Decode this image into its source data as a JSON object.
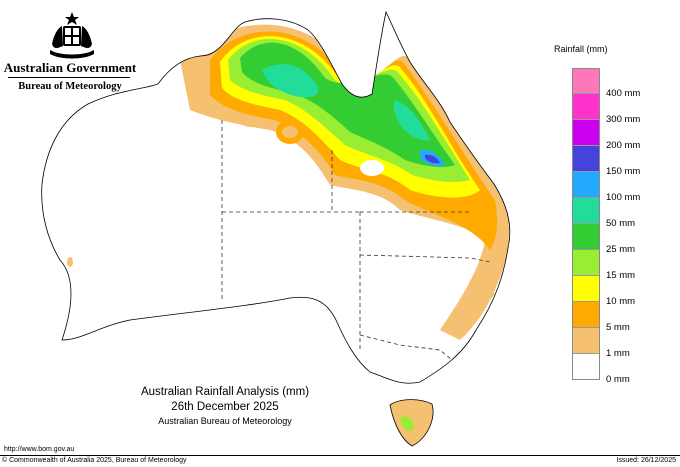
{
  "header": {
    "government": "Australian Government",
    "bureau": "Bureau of Meteorology"
  },
  "legend": {
    "title": "Rainfall (mm)",
    "classes": [
      {
        "label": "",
        "color": "#ff77bb"
      },
      {
        "label": "400 mm",
        "color": "#ff33cc"
      },
      {
        "label": "300 mm",
        "color": "#cc00ee"
      },
      {
        "label": "200 mm",
        "color": "#4444dd"
      },
      {
        "label": "150 mm",
        "color": "#22aaff"
      },
      {
        "label": "100 mm",
        "color": "#22dd99"
      },
      {
        "label": "50 mm",
        "color": "#33cc33"
      },
      {
        "label": "25 mm",
        "color": "#99ee33"
      },
      {
        "label": "15 mm",
        "color": "#ffff00"
      },
      {
        "label": "10 mm",
        "color": "#ffaa00"
      },
      {
        "label": "5 mm",
        "color": "#f5c070"
      },
      {
        "label": "1 mm",
        "color": "#ffffff"
      },
      {
        "label": "0 mm",
        "color": ""
      }
    ]
  },
  "title": {
    "line1": "Australian Rainfall Analysis (mm)",
    "line2": "26th December 2025",
    "line3": "Australian Bureau of Meteorology"
  },
  "footer": {
    "url": "http://www.bom.gov.au",
    "copyright": "© Commonwealth of Australia 2025, Bureau of Meteorology",
    "issued": "Issued: 26/12/2025"
  }
}
